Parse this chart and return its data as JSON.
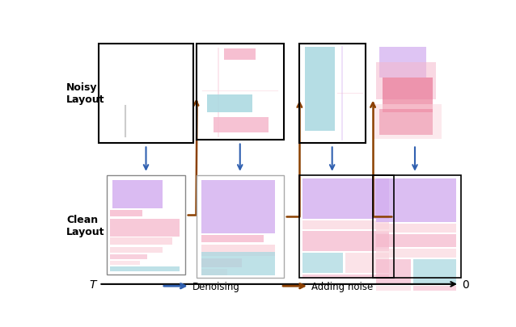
{
  "fig_width": 6.38,
  "fig_height": 4.06,
  "bg_color": "#ffffff",
  "colors": {
    "purple": "#d4b0f0",
    "pink": "#f5b8cc",
    "teal": "#a8d8e0",
    "pink_light": "#fad4dc",
    "red_pink": "#e87090",
    "denoising_color": "#3060b0",
    "noise_color": "#8B4000"
  },
  "noisy_label": "Noisy\nLayout",
  "clean_label": "Clean\nLayout",
  "timeline_label_T": "T",
  "timeline_label_0": "0",
  "denoising_label": "Denoising",
  "noise_label": "Adding noise"
}
